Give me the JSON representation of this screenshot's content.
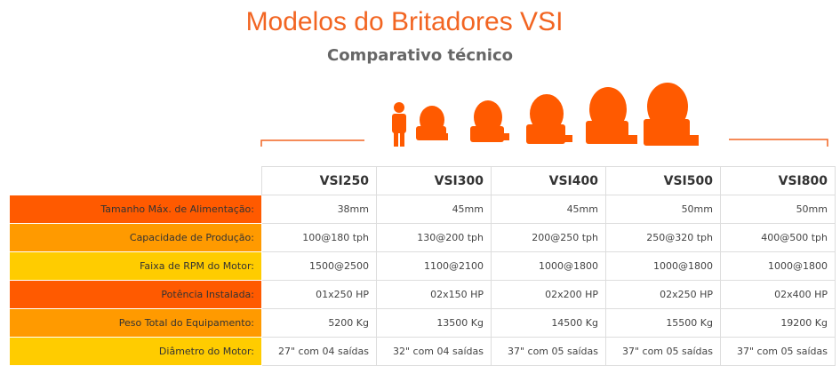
{
  "header": {
    "title": "Modelos do Britadores VSI",
    "subtitle": "Comparativo técnico"
  },
  "table": {
    "columns": [
      "VSI250",
      "VSI300",
      "VSI400",
      "VSI500",
      "VSI800"
    ],
    "rows": [
      {
        "label": "Tamanho Máx. de Alimentação:",
        "cells": [
          "38mm",
          "45mm",
          "45mm",
          "50mm",
          "50mm"
        ]
      },
      {
        "label": "Capacidade de Produção:",
        "cells": [
          "100@180 tph",
          "130@200 tph",
          "200@250 tph",
          "250@320 tph",
          "400@500 tph"
        ]
      },
      {
        "label": "Faixa de RPM do Motor:",
        "cells": [
          "1500@2500",
          "1100@2100",
          "1000@1800",
          "1000@1800",
          "1000@1800"
        ]
      },
      {
        "label": "Potência Instalada:",
        "cells": [
          "01x250 HP",
          "02x150 HP",
          "02x200 HP",
          "02x250 HP",
          "02x400 HP"
        ]
      },
      {
        "label": "Peso Total do Equipamento:",
        "cells": [
          "5200 Kg",
          "13500 Kg",
          "14500 Kg",
          "15500 Kg",
          "19200 Kg"
        ]
      },
      {
        "label": "Diâmetro do Motor:",
        "cells": [
          "27\" com 04 saídas",
          "32\" com 04 saídas",
          "37\" com 05 saídas",
          "37\" com 05 saídas",
          "37\" com 05 saídas"
        ]
      }
    ]
  }
}
